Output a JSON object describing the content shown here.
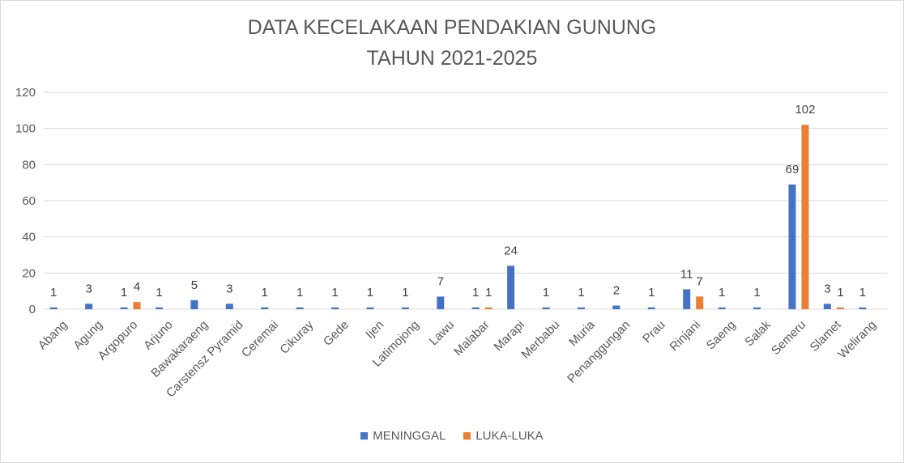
{
  "chart_data": {
    "type": "bar",
    "title": "DATA KECELAKAAN PENDAKIAN GUNUNG",
    "subtitle": "TAHUN 2021-2025",
    "categories": [
      "Abang",
      "Agung",
      "Argopuro",
      "Arjuno",
      "Bawakaraeng",
      "Carstensz Pyramid",
      "Ceremai",
      "Cikuray",
      "Gede",
      "Ijen",
      "Latimojong",
      "Lawu",
      "Malabar",
      "Marapi",
      "Merbabu",
      "Muria",
      "Penanggungan",
      "Prau",
      "Rinjani",
      "Saeng",
      "Salak",
      "Semeru",
      "Slamet",
      "Welirang"
    ],
    "series": [
      {
        "name": "MENINGGAL",
        "color": "#4472C4",
        "values": [
          1,
          3,
          1,
          1,
          5,
          3,
          1,
          1,
          1,
          1,
          1,
          7,
          1,
          24,
          1,
          1,
          2,
          1,
          11,
          1,
          1,
          69,
          3,
          1
        ]
      },
      {
        "name": "LUKA-LUKA",
        "color": "#ED7D31",
        "values": [
          null,
          null,
          4,
          null,
          null,
          null,
          null,
          null,
          null,
          null,
          null,
          null,
          1,
          null,
          null,
          null,
          null,
          null,
          7,
          null,
          null,
          102,
          1,
          null
        ]
      }
    ],
    "ylim": [
      0,
      120
    ],
    "yticks": [
      0,
      20,
      40,
      60,
      80,
      100,
      120
    ],
    "grid": true,
    "legend_position": "bottom"
  }
}
